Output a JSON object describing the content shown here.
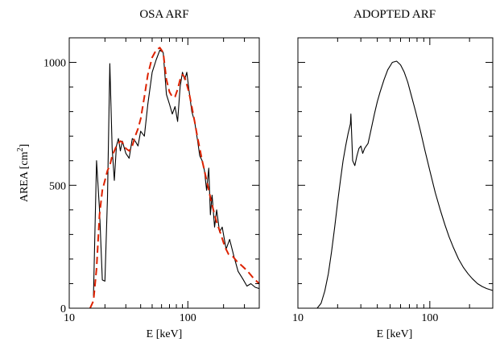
{
  "chart_data": [
    {
      "type": "line",
      "title": "OSA ARF",
      "xlabel": "E [keV]",
      "ylabel": "AREA [cm",
      "ylabel_sup": "2",
      "ylabel_suffix": "]",
      "xscale": "log",
      "xlim": [
        10,
        400
      ],
      "ylim": [
        0,
        1100
      ],
      "xticks": [
        10,
        100
      ],
      "xtick_labels": [
        "10",
        "100"
      ],
      "yticks": [
        0,
        500,
        1000
      ],
      "ytick_labels": [
        "0",
        "500",
        "1000"
      ],
      "series": [
        {
          "color": "#000000",
          "dash": "solid",
          "x": [
            16,
            17,
            18,
            19,
            20,
            21,
            22,
            23,
            24,
            25,
            26,
            27,
            28,
            30,
            32,
            34,
            36,
            38,
            40,
            43,
            46,
            50,
            54,
            58,
            62,
            66,
            70,
            74,
            78,
            82,
            86,
            90,
            94,
            98,
            102,
            108,
            114,
            120,
            126,
            132,
            138,
            144,
            150,
            155,
            160,
            168,
            175,
            185,
            195,
            210,
            225,
            245,
            265,
            290,
            315,
            340,
            370,
            400
          ],
          "y": [
            50,
            600,
            400,
            115,
            110,
            450,
            995,
            650,
            520,
            660,
            690,
            640,
            680,
            630,
            610,
            690,
            680,
            660,
            720,
            700,
            830,
            960,
            1010,
            1050,
            1040,
            870,
            830,
            790,
            820,
            760,
            900,
            960,
            930,
            960,
            890,
            800,
            760,
            690,
            620,
            600,
            560,
            480,
            570,
            380,
            460,
            330,
            400,
            310,
            330,
            240,
            280,
            210,
            150,
            120,
            90,
            100,
            85,
            80
          ]
        },
        {
          "color": "#dd2200",
          "dash": "dashed",
          "x": [
            15,
            16,
            17,
            18,
            19,
            20,
            21,
            22,
            23,
            24,
            25,
            26,
            27,
            28,
            30,
            32,
            34,
            36,
            38,
            40,
            43,
            46,
            50,
            54,
            58,
            62,
            66,
            70,
            74,
            78,
            82,
            86,
            90,
            94,
            98,
            102,
            108,
            114,
            120,
            126,
            132,
            138,
            144,
            150,
            160,
            175,
            190,
            205,
            220,
            240,
            260,
            290,
            320,
            360,
            400
          ],
          "y": [
            0,
            30,
            160,
            380,
            480,
            520,
            560,
            580,
            620,
            640,
            660,
            670,
            680,
            675,
            650,
            640,
            660,
            700,
            730,
            770,
            860,
            950,
            1020,
            1050,
            1060,
            1040,
            930,
            880,
            860,
            860,
            890,
            930,
            950,
            940,
            910,
            880,
            820,
            760,
            700,
            650,
            600,
            560,
            520,
            480,
            420,
            350,
            300,
            250,
            220,
            210,
            190,
            170,
            150,
            120,
            100
          ]
        }
      ]
    },
    {
      "type": "line",
      "title": "ADOPTED ARF",
      "xlabel": "E [keV]",
      "xscale": "log",
      "xlim": [
        10,
        300
      ],
      "ylim": [
        0,
        1100
      ],
      "xticks": [
        10,
        100
      ],
      "xtick_labels": [
        "10",
        "100"
      ],
      "yticks": [
        0,
        500,
        1000
      ],
      "series": [
        {
          "color": "#000000",
          "dash": "solid",
          "x": [
            14,
            15,
            16,
            17,
            18,
            19,
            20,
            21,
            22,
            23,
            24,
            25,
            25.2,
            26,
            27,
            28,
            29,
            30,
            31,
            32,
            33,
            34,
            35,
            36,
            38,
            40,
            42,
            45,
            48,
            52,
            56,
            60,
            64,
            68,
            72,
            78,
            85,
            92,
            100,
            110,
            120,
            130,
            140,
            150,
            165,
            180,
            195,
            210,
            230,
            250,
            270,
            300
          ],
          "y": [
            0,
            20,
            70,
            140,
            230,
            330,
            430,
            520,
            600,
            660,
            710,
            750,
            790,
            600,
            580,
            620,
            650,
            660,
            630,
            650,
            660,
            670,
            700,
            730,
            790,
            840,
            880,
            930,
            970,
            1000,
            1005,
            990,
            960,
            920,
            870,
            800,
            720,
            640,
            560,
            470,
            400,
            340,
            290,
            250,
            200,
            165,
            140,
            120,
            100,
            88,
            80,
            72
          ]
        }
      ]
    }
  ]
}
